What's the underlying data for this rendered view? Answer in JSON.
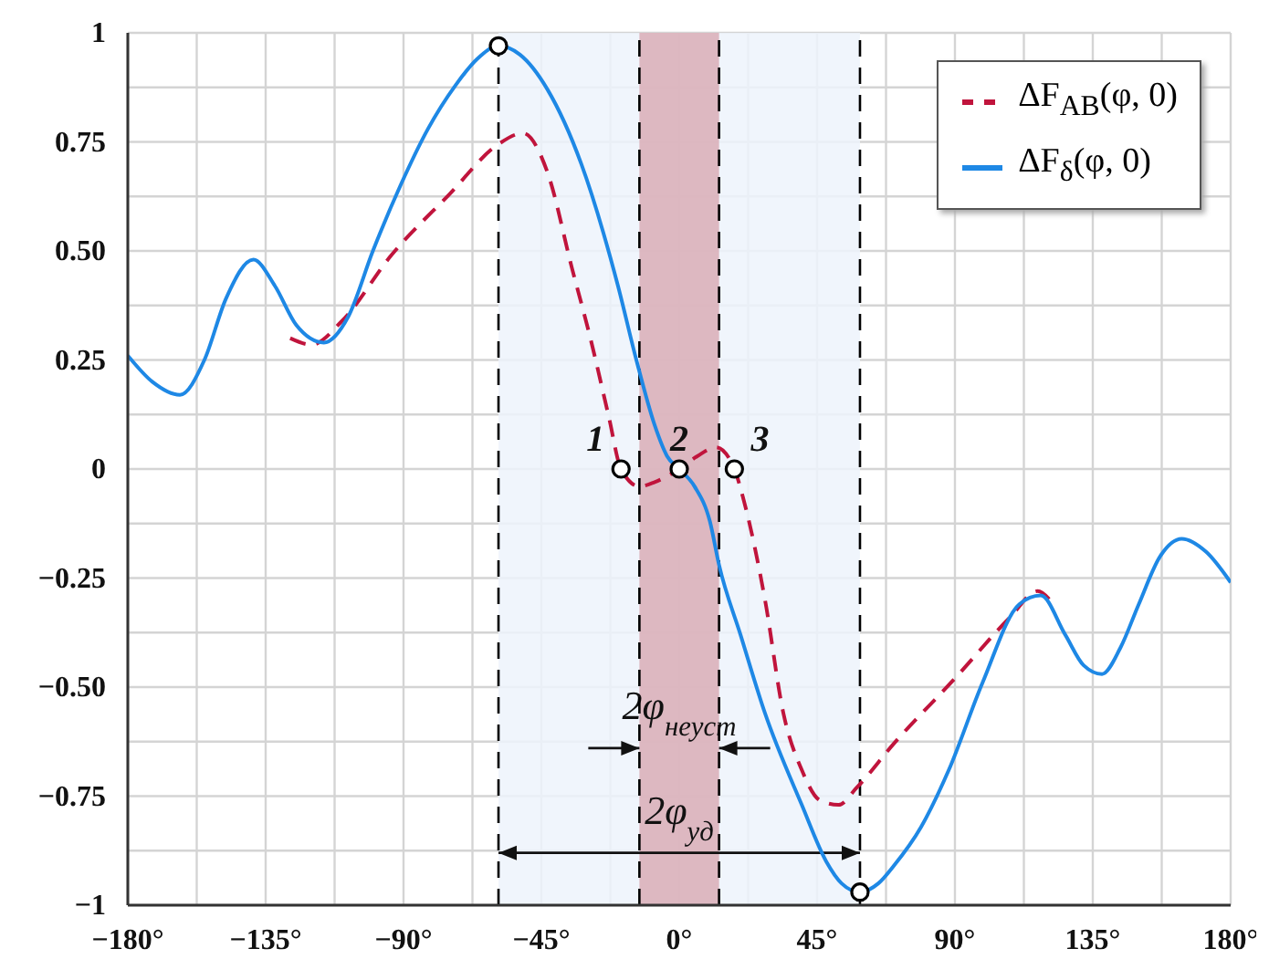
{
  "chart_data": {
    "type": "line",
    "xlim": [
      -180,
      180
    ],
    "xticks": [
      {
        "value": -180,
        "label": "−180°"
      },
      {
        "value": -157.5,
        "label": null
      },
      {
        "value": -135,
        "label": "−135°"
      },
      {
        "value": -112.5,
        "label": null
      },
      {
        "value": -90,
        "label": "−90°"
      },
      {
        "value": -67.5,
        "label": null
      },
      {
        "value": -45,
        "label": "−45°"
      },
      {
        "value": -22.5,
        "label": null
      },
      {
        "value": 0,
        "label": "0°"
      },
      {
        "value": 22.5,
        "label": null
      },
      {
        "value": 45,
        "label": "45°"
      },
      {
        "value": 67.5,
        "label": null
      },
      {
        "value": 90,
        "label": "90°"
      },
      {
        "value": 112.5,
        "label": null
      },
      {
        "value": 135,
        "label": "135°"
      },
      {
        "value": 157.5,
        "label": null
      },
      {
        "value": 180,
        "label": "180°"
      }
    ],
    "ylim": [
      -1,
      1
    ],
    "yticks": [
      {
        "value": -1,
        "label": "−1"
      },
      {
        "value": -0.875,
        "label": null
      },
      {
        "value": -0.75,
        "label": "−0.75"
      },
      {
        "value": -0.625,
        "label": null
      },
      {
        "value": -0.5,
        "label": "−0.50"
      },
      {
        "value": -0.375,
        "label": null
      },
      {
        "value": -0.25,
        "label": "−0.25"
      },
      {
        "value": -0.125,
        "label": null
      },
      {
        "value": 0,
        "label": "0"
      },
      {
        "value": 0.125,
        "label": null
      },
      {
        "value": 0.25,
        "label": "0.25"
      },
      {
        "value": 0.375,
        "label": null
      },
      {
        "value": 0.5,
        "label": "0.50"
      },
      {
        "value": 0.625,
        "label": null
      },
      {
        "value": 0.75,
        "label": "0.75"
      },
      {
        "value": 0.875,
        "label": null
      },
      {
        "value": 1,
        "label": "1"
      }
    ],
    "grid": true,
    "legend": "top right",
    "marker": "none",
    "series": [
      {
        "name": "ΔF$_{AB}$(φ, 0)",
        "color": "#c0143c",
        "line_style": "dashed",
        "x": [
          -127,
          -120,
          -110,
          -94,
          -75,
          -59,
          -51,
          -43,
          -35,
          -29,
          -23,
          -19,
          -13,
          -8,
          0,
          6,
          12,
          18,
          21,
          28,
          34,
          40,
          46,
          52,
          58,
          70,
          90,
          108,
          117,
          121
        ],
        "values": [
          0.3,
          0.285,
          0.34,
          0.49,
          0.63,
          0.745,
          0.77,
          0.68,
          0.46,
          0.3,
          0.12,
          0,
          -0.04,
          -0.03,
          0,
          0.03,
          0.05,
          0,
          -0.07,
          -0.3,
          -0.56,
          -0.69,
          -0.76,
          -0.77,
          -0.73,
          -0.63,
          -0.48,
          -0.34,
          -0.28,
          -0.3
        ]
      },
      {
        "name": "ΔF$_{δ}$(φ, 0)",
        "color": "#1e88e5",
        "line_style": "solid",
        "x": [
          -180,
          -172,
          -163,
          -155,
          -148,
          -139,
          -132,
          -125,
          -116,
          -108,
          -100,
          -91,
          -82,
          -73,
          -66,
          -59,
          -52,
          -43,
          -32,
          -20,
          -14,
          -8,
          -4,
          0,
          5,
          10,
          13,
          20,
          28,
          40,
          48,
          53,
          59,
          65,
          70,
          79,
          88,
          99,
          111,
          118,
          126,
          132,
          138,
          144,
          150,
          157,
          164,
          172,
          180
        ],
        "values": [
          0.26,
          0.2,
          0.17,
          0.25,
          0.39,
          0.48,
          0.42,
          0.33,
          0.29,
          0.35,
          0.5,
          0.65,
          0.78,
          0.88,
          0.94,
          0.97,
          0.95,
          0.87,
          0.7,
          0.42,
          0.25,
          0.1,
          0.03,
          0,
          -0.04,
          -0.12,
          -0.22,
          -0.38,
          -0.56,
          -0.77,
          -0.9,
          -0.95,
          -0.97,
          -0.95,
          -0.91,
          -0.82,
          -0.69,
          -0.49,
          -0.31,
          -0.29,
          -0.38,
          -0.45,
          -0.47,
          -0.41,
          -0.31,
          -0.2,
          -0.16,
          -0.19,
          -0.26
        ]
      },
      {
        "type": "scatter",
        "color": "#000000",
        "marker": "circle",
        "x": [
          -59,
          -19,
          0,
          18,
          59
        ],
        "values": [
          0.97,
          0,
          0,
          0,
          -0.97
        ]
      }
    ],
    "bands": [
      {
        "axis": "x",
        "from": -59,
        "to": 59,
        "color": "#edf3fb",
        "label": "2φ$_{уд}$"
      },
      {
        "axis": "x",
        "from": -13,
        "to": 13,
        "color": "#d9adb6",
        "label": "2φ$_{неуст}$"
      }
    ],
    "ref_lines": [
      {
        "axis": "x",
        "value": -59,
        "line_style": "dashed",
        "color": "#000000"
      },
      {
        "axis": "x",
        "value": -13,
        "line_style": "dashed",
        "color": "#000000"
      },
      {
        "axis": "x",
        "value": 13,
        "line_style": "dashed",
        "color": "#000000"
      },
      {
        "axis": "x",
        "value": 59,
        "line_style": "dashed",
        "color": "#000000"
      }
    ],
    "annotations": [
      {
        "text": "1",
        "x": -19,
        "y": 0
      },
      {
        "text": "2",
        "x": 0,
        "y": 0
      },
      {
        "text": "3",
        "x": 18,
        "y": 0
      }
    ]
  }
}
